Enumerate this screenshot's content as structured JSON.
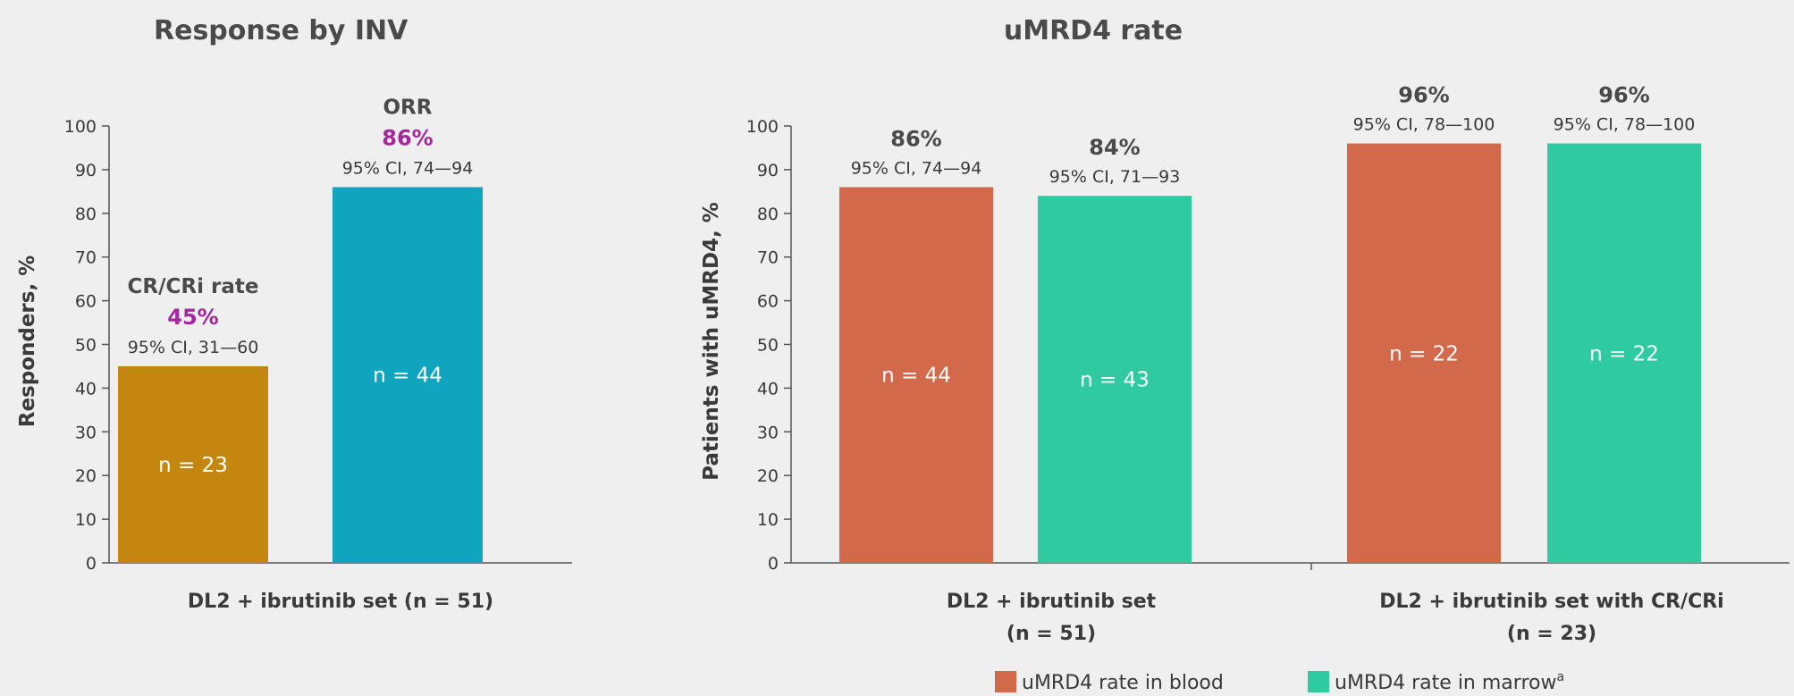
{
  "colors": {
    "cr_bar": "#c3860e",
    "orr_bar": "#10a4bf",
    "blood": "#d2694a",
    "marrow": "#2fcaa0",
    "pct_highlight": "#a3289e"
  },
  "chart_data": [
    {
      "type": "bar",
      "title": "Response by INV",
      "ylabel": "Responders, %",
      "ylim": [
        0,
        100
      ],
      "yticks": [
        "0",
        "10",
        "20",
        "30",
        "40",
        "50",
        "60",
        "70",
        "80",
        "90",
        "100"
      ],
      "categories": [
        "DL2 + ibrutinib set (n = 51)"
      ],
      "bars": [
        {
          "label": "CR/CRi rate",
          "value": 45,
          "pct_label": "45%",
          "ci": "95% CI, 31—60",
          "n": "n = 23"
        },
        {
          "label": "ORR",
          "value": 86,
          "pct_label": "86%",
          "ci": "95% CI, 74—94",
          "n": "n = 44"
        }
      ]
    },
    {
      "type": "bar",
      "title": "uMRD4 rate",
      "ylabel": "Patients with uMRD4, %",
      "ylim": [
        0,
        100
      ],
      "yticks": [
        "0",
        "10",
        "20",
        "30",
        "40",
        "50",
        "60",
        "70",
        "80",
        "90",
        "100"
      ],
      "categories": [
        {
          "line1": "DL2 + ibrutinib set",
          "line2": "(n = 51)"
        },
        {
          "line1": "DL2 + ibrutinib set with CR/CRi",
          "line2": "(n = 23)"
        }
      ],
      "series": [
        {
          "name": "uMRD4 rate in blood",
          "values": [
            86,
            96
          ],
          "pct_labels": [
            "86%",
            "96%"
          ],
          "ci": [
            "95% CI, 74—94",
            "95% CI, 78—100"
          ],
          "n": [
            "n = 44",
            "n = 22"
          ]
        },
        {
          "name": "uMRD4 rate in marrow",
          "name_sup": "a",
          "values": [
            84,
            96
          ],
          "pct_labels": [
            "84%",
            "96%"
          ],
          "ci": [
            "95% CI, 71—93",
            "95% CI, 78—100"
          ],
          "n": [
            "n = 43",
            "n = 22"
          ]
        }
      ]
    }
  ]
}
